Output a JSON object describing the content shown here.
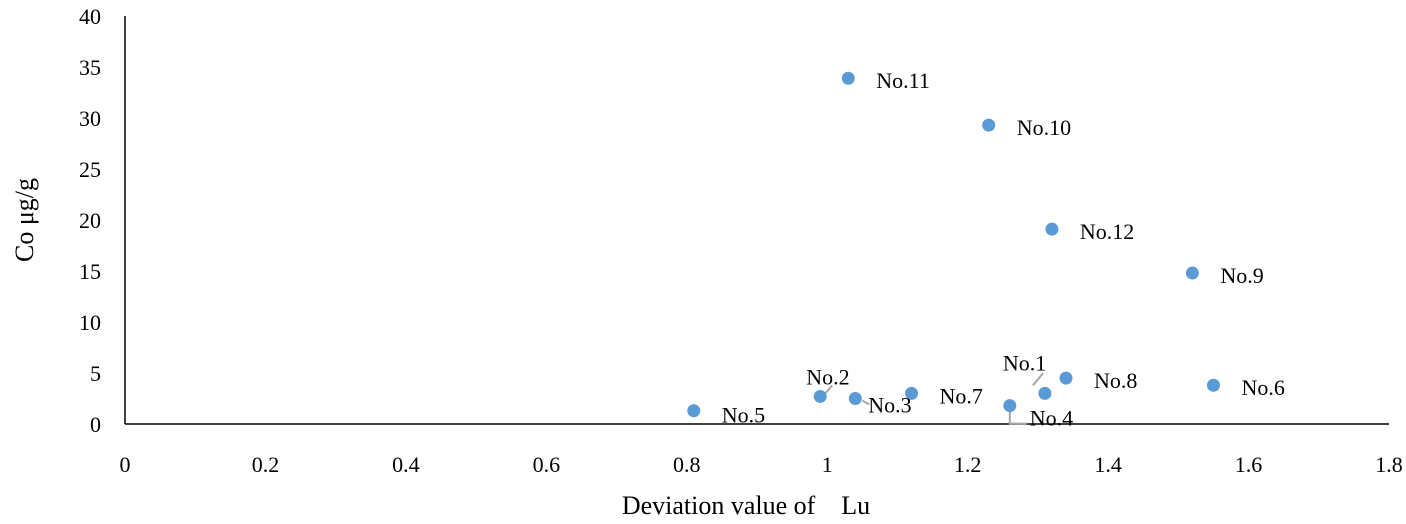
{
  "chart_data": {
    "type": "scatter",
    "title": "",
    "xlabel": "Deviation value of    Lu",
    "ylabel": "Co μg/g",
    "xlim": [
      0,
      1.8
    ],
    "ylim": [
      0,
      40
    ],
    "grid": false,
    "legend": "none",
    "x_ticks": [
      "0",
      "0.2",
      "0.4",
      "0.6",
      "0.8",
      "1",
      "1.2",
      "1.4",
      "1.6",
      "1.8"
    ],
    "y_ticks": [
      "0",
      "5",
      "10",
      "15",
      "20",
      "25",
      "30",
      "35",
      "40"
    ],
    "marker_color": "#5b9bd5",
    "leader_color": "#a6a6a6",
    "points": [
      {
        "label": "No.1",
        "x": 1.31,
        "y": 3.0
      },
      {
        "label": "No.2",
        "x": 0.99,
        "y": 2.7
      },
      {
        "label": "No.3",
        "x": 1.04,
        "y": 2.5
      },
      {
        "label": "No.4",
        "x": 1.26,
        "y": 1.8
      },
      {
        "label": "No.5",
        "x": 0.81,
        "y": 1.3
      },
      {
        "label": "No.6",
        "x": 1.55,
        "y": 3.8
      },
      {
        "label": "No.7",
        "x": 1.12,
        "y": 3.0
      },
      {
        "label": "No.8",
        "x": 1.34,
        "y": 4.5
      },
      {
        "label": "No.9",
        "x": 1.52,
        "y": 14.8
      },
      {
        "label": "No.10",
        "x": 1.23,
        "y": 29.3
      },
      {
        "label": "No.11",
        "x": 1.03,
        "y": 33.9
      },
      {
        "label": "No.12",
        "x": 1.32,
        "y": 19.1
      }
    ]
  }
}
